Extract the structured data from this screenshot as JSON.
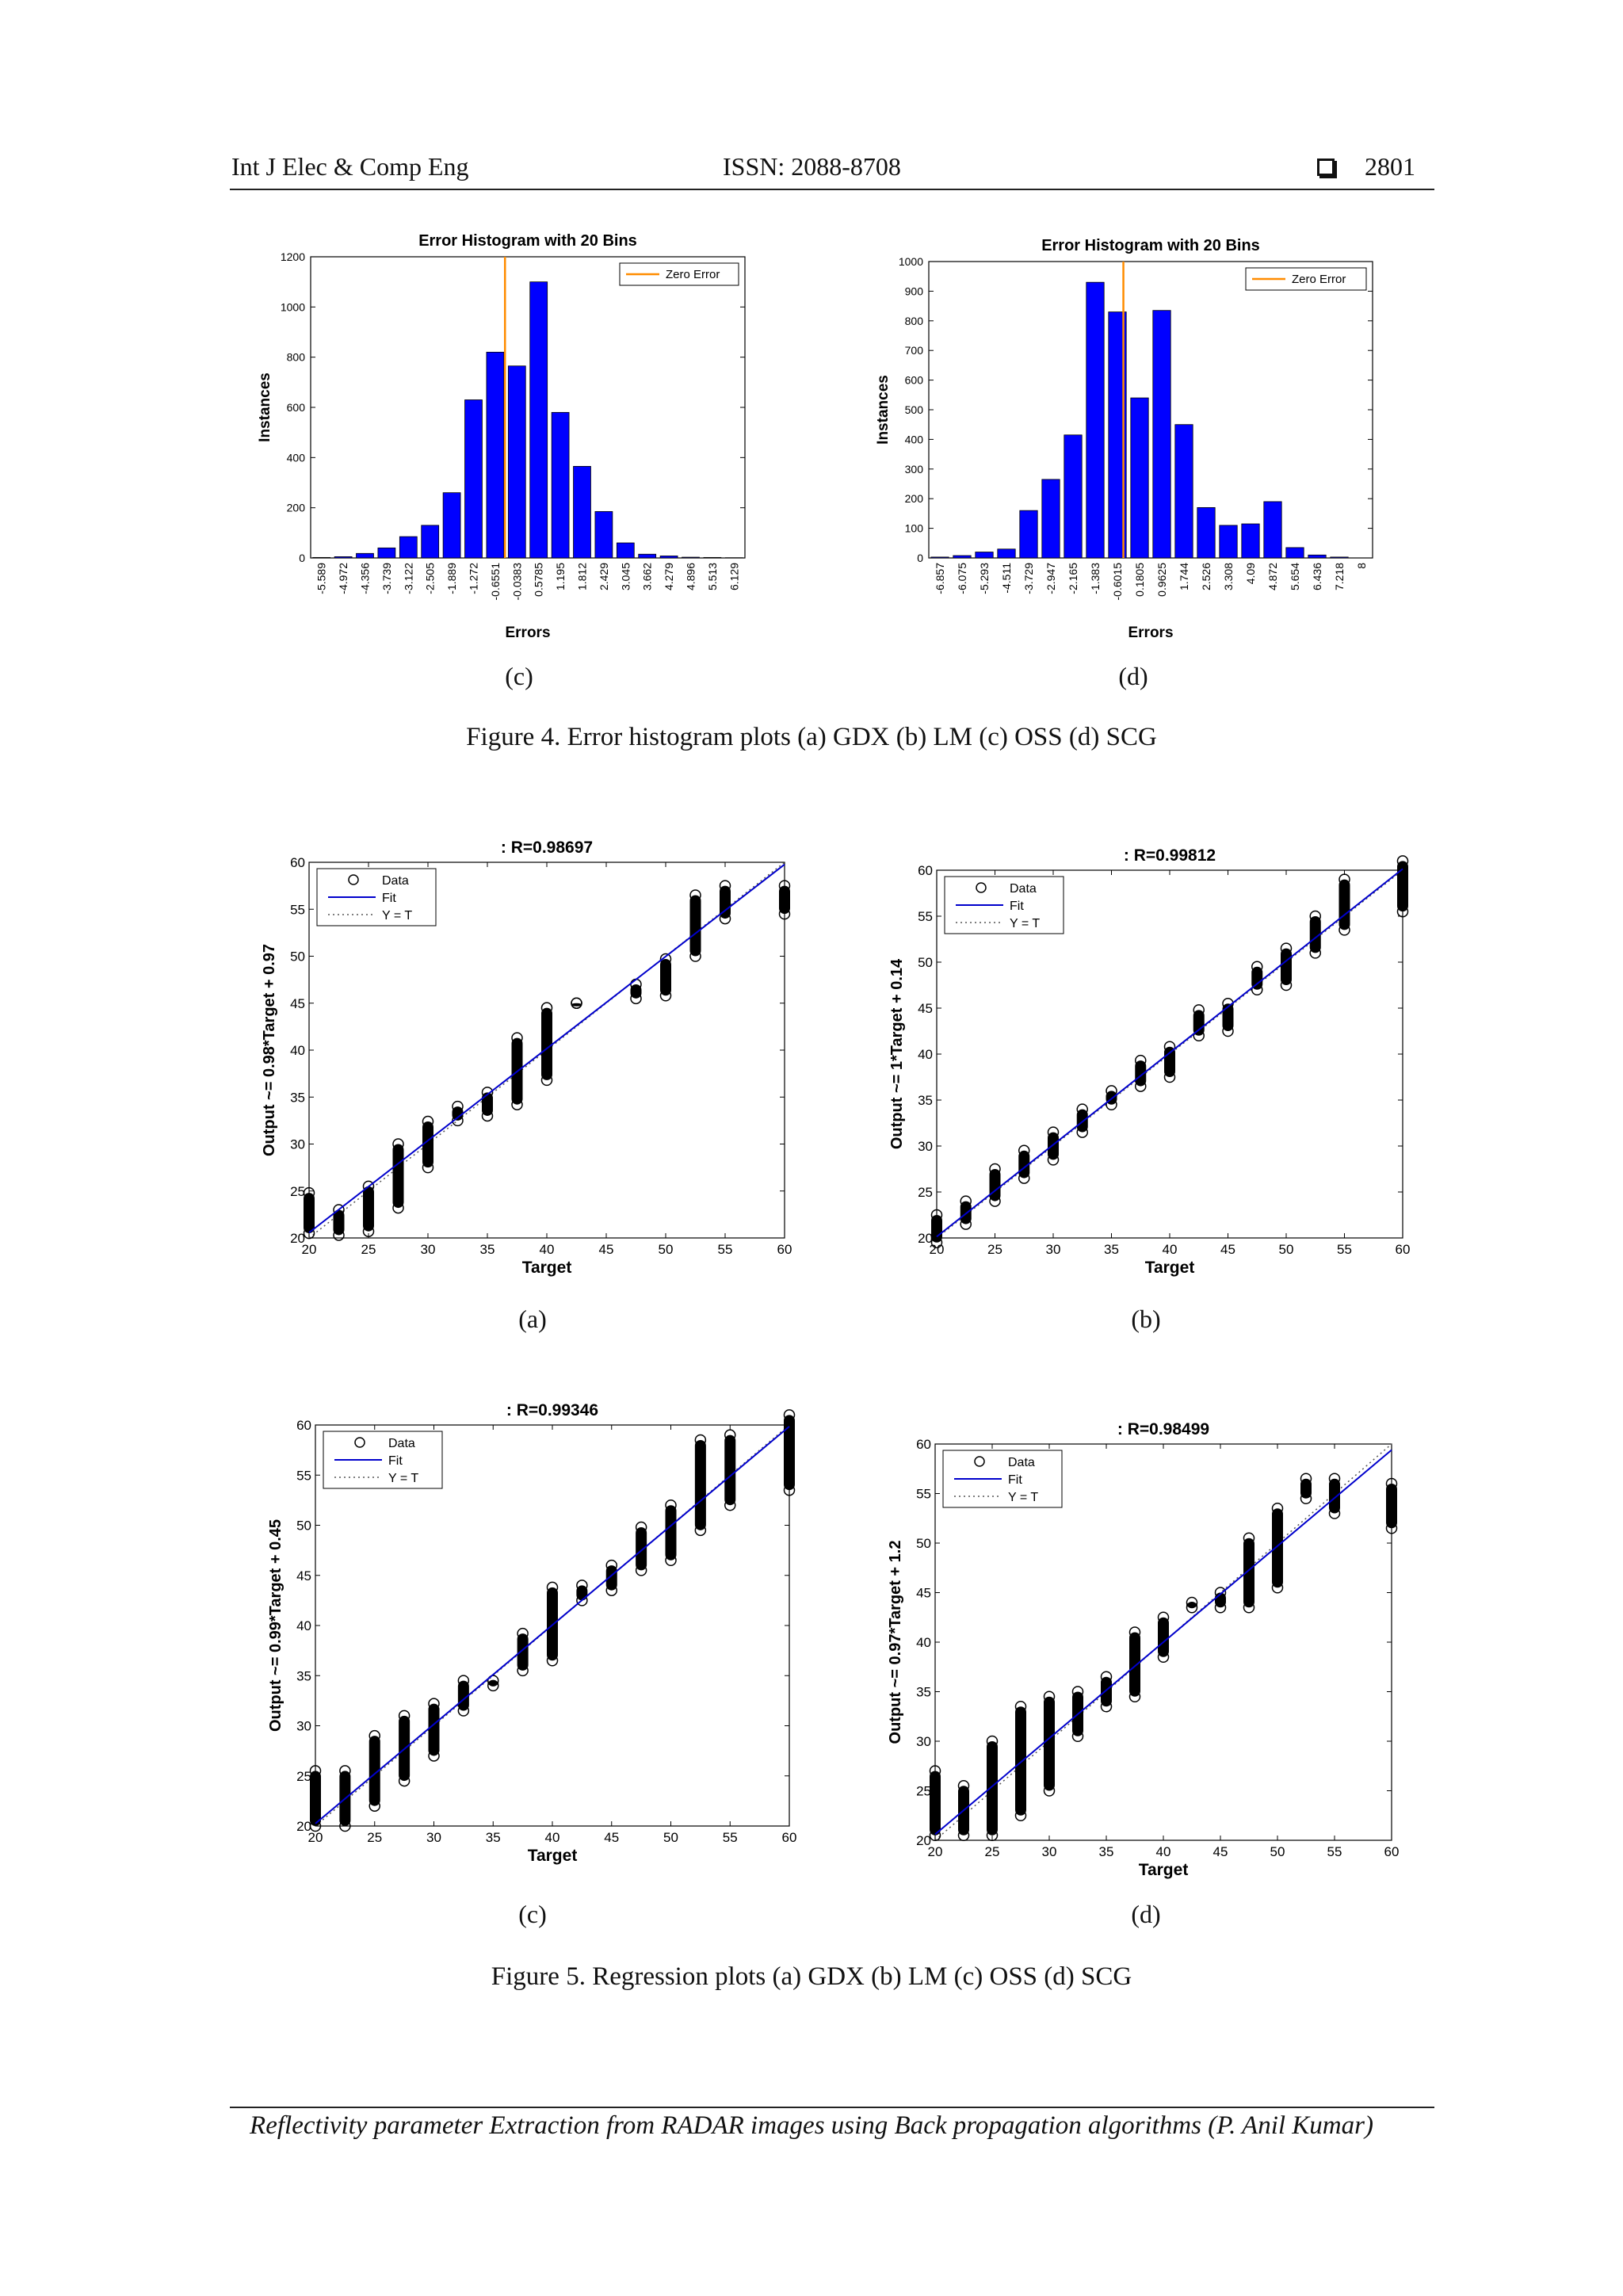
{
  "header": {
    "journal": "Int J Elec & Comp Eng",
    "issn": "ISSN: 2088-8708",
    "page": "2801"
  },
  "figure4": {
    "caption": "Figure 4. Error histogram plots (a) GDX (b) LM (c) OSS (d) SCG",
    "labels": [
      "(c)",
      "(d)"
    ]
  },
  "figure5": {
    "caption": "Figure 5. Regression plots (a) GDX (b) LM (c) OSS (d) SCG",
    "labels": [
      "(a)",
      "(b)",
      "(c)",
      "(d)"
    ]
  },
  "footer": "Reflectivity parameter Extraction from RADAR images using Back propagation algorithms (P. Anil Kumar)",
  "colors": {
    "bar": "#0000ff",
    "zero_line": "#ff8c00",
    "fit": "#0000cc",
    "data": "#000000"
  },
  "chart_data": [
    {
      "type": "bar",
      "id": "hist-c",
      "title": "Error Histogram with 20 Bins",
      "xlabel": "Errors",
      "ylabel": "Instances",
      "categories": [
        "-5.589",
        "-4.972",
        "-4.356",
        "-3.739",
        "-3.122",
        "-2.505",
        "-1.889",
        "-1.272",
        "-0.6551",
        "-0.0383",
        "0.5785",
        "1.195",
        "1.812",
        "2.429",
        "3.045",
        "3.662",
        "4.279",
        "4.896",
        "5.513",
        "6.129"
      ],
      "values": [
        2,
        5,
        18,
        40,
        85,
        130,
        260,
        630,
        820,
        765,
        1100,
        580,
        365,
        185,
        60,
        15,
        8,
        3,
        2,
        1
      ],
      "ylim": [
        0,
        1200
      ],
      "yticks": [
        0,
        200,
        400,
        600,
        800,
        1000,
        1200
      ],
      "zero_error_x": 8.95,
      "legend": "Zero Error",
      "legend_position": "top-right"
    },
    {
      "type": "bar",
      "id": "hist-d",
      "title": "Error Histogram with 20 Bins",
      "xlabel": "Errors",
      "ylabel": "Instances",
      "categories": [
        "-6.857",
        "-6.075",
        "-5.293",
        "-4.511",
        "-3.729",
        "-2.947",
        "-2.165",
        "-1.383",
        "-0.6015",
        "0.1805",
        "0.9625",
        "1.744",
        "2.526",
        "3.308",
        "4.09",
        "4.872",
        "5.654",
        "6.436",
        "7.218",
        "8"
      ],
      "values": [
        3,
        8,
        20,
        30,
        160,
        265,
        415,
        930,
        830,
        540,
        835,
        450,
        170,
        110,
        115,
        190,
        35,
        10,
        3,
        0
      ],
      "ylim": [
        0,
        1000
      ],
      "yticks": [
        0,
        100,
        200,
        300,
        400,
        500,
        600,
        700,
        800,
        900,
        1000
      ],
      "zero_error_x": 8.77,
      "legend": "Zero Error",
      "legend_position": "top-right"
    },
    {
      "type": "scatter",
      "id": "reg-a",
      "title": ": R=0.98697",
      "xlabel": "Target",
      "ylabel": "Output ~= 0.98*Target + 0.97",
      "xlim": [
        20,
        60
      ],
      "ylim": [
        20,
        60
      ],
      "xticks": [
        20,
        25,
        30,
        35,
        40,
        45,
        50,
        55,
        60
      ],
      "yticks": [
        20,
        25,
        30,
        35,
        40,
        45,
        50,
        55,
        60
      ],
      "fit": {
        "slope": 0.98,
        "intercept": 0.97
      },
      "legend": [
        "Data",
        "Fit",
        "Y = T"
      ],
      "legend_position": "top-left",
      "points": [
        [
          20,
          20.5
        ],
        [
          20,
          24.8
        ],
        [
          22.5,
          20.3
        ],
        [
          22.5,
          23.0
        ],
        [
          25,
          20.7
        ],
        [
          25,
          25.5
        ],
        [
          27.5,
          23.2
        ],
        [
          27.5,
          30.0
        ],
        [
          30,
          27.5
        ],
        [
          30,
          32.4
        ],
        [
          32.5,
          32.5
        ],
        [
          32.5,
          34.0
        ],
        [
          35,
          33.0
        ],
        [
          35,
          35.5
        ],
        [
          37.5,
          34.2
        ],
        [
          37.5,
          41.3
        ],
        [
          40,
          36.8
        ],
        [
          40,
          44.5
        ],
        [
          42.5,
          45.0
        ],
        [
          45,
          45.0
        ],
        [
          47.5,
          45.5
        ],
        [
          47.5,
          47.0
        ],
        [
          50,
          45.8
        ],
        [
          50,
          49.7
        ],
        [
          52.5,
          50.0
        ],
        [
          52.5,
          56.5
        ],
        [
          55,
          54.0
        ],
        [
          55,
          57.5
        ],
        [
          60,
          54.5
        ],
        [
          60,
          57.5
        ]
      ]
    },
    {
      "type": "scatter",
      "id": "reg-b",
      "title": ": R=0.99812",
      "xlabel": "Target",
      "ylabel": "Output ~= 1*Target + 0.14",
      "xlim": [
        20,
        60
      ],
      "ylim": [
        20,
        60
      ],
      "xticks": [
        20,
        25,
        30,
        35,
        40,
        45,
        50,
        55,
        60
      ],
      "yticks": [
        20,
        25,
        30,
        35,
        40,
        45,
        50,
        55,
        60
      ],
      "fit": {
        "slope": 1.0,
        "intercept": 0.14
      },
      "legend": [
        "Data",
        "Fit",
        "Y = T"
      ],
      "legend_position": "top-left",
      "points": [
        [
          20,
          19.5
        ],
        [
          20,
          22.5
        ],
        [
          22.5,
          21.5
        ],
        [
          22.5,
          24.0
        ],
        [
          25,
          24.0
        ],
        [
          25,
          27.5
        ],
        [
          27.5,
          26.5
        ],
        [
          27.5,
          29.5
        ],
        [
          30,
          28.5
        ],
        [
          30,
          31.5
        ],
        [
          32.5,
          31.5
        ],
        [
          32.5,
          34.0
        ],
        [
          35,
          34.5
        ],
        [
          35,
          36.0
        ],
        [
          37.5,
          36.5
        ],
        [
          37.5,
          39.3
        ],
        [
          40,
          37.5
        ],
        [
          40,
          40.8
        ],
        [
          42.5,
          42.0
        ],
        [
          42.5,
          44.8
        ],
        [
          45,
          42.5
        ],
        [
          45,
          45.5
        ],
        [
          47.5,
          47.0
        ],
        [
          47.5,
          49.5
        ],
        [
          50,
          47.5
        ],
        [
          50,
          51.5
        ],
        [
          52.5,
          51.0
        ],
        [
          52.5,
          55.0
        ],
        [
          55,
          53.5
        ],
        [
          55,
          59.0
        ],
        [
          60,
          55.5
        ],
        [
          60,
          61.0
        ]
      ]
    },
    {
      "type": "scatter",
      "id": "reg-c",
      "title": ": R=0.99346",
      "xlabel": "Target",
      "ylabel": "Output ~= 0.99*Target + 0.45",
      "xlim": [
        20,
        60
      ],
      "ylim": [
        20,
        60
      ],
      "xticks": [
        20,
        25,
        30,
        35,
        40,
        45,
        50,
        55,
        60
      ],
      "yticks": [
        20,
        25,
        30,
        35,
        40,
        45,
        50,
        55,
        60
      ],
      "fit": {
        "slope": 0.99,
        "intercept": 0.45
      },
      "legend": [
        "Data",
        "Fit",
        "Y = T"
      ],
      "legend_position": "top-left",
      "points": [
        [
          20,
          20.0
        ],
        [
          20,
          25.5
        ],
        [
          22.5,
          20.0
        ],
        [
          22.5,
          25.5
        ],
        [
          25,
          22.0
        ],
        [
          25,
          29.0
        ],
        [
          27.5,
          24.5
        ],
        [
          27.5,
          31.0
        ],
        [
          30,
          27.0
        ],
        [
          30,
          32.2
        ],
        [
          32.5,
          31.5
        ],
        [
          32.5,
          34.5
        ],
        [
          35,
          34.0
        ],
        [
          35,
          34.5
        ],
        [
          37.5,
          35.5
        ],
        [
          37.5,
          39.2
        ],
        [
          40,
          36.5
        ],
        [
          40,
          43.8
        ],
        [
          42.5,
          42.5
        ],
        [
          42.5,
          44.0
        ],
        [
          45,
          43.5
        ],
        [
          45,
          46.0
        ],
        [
          47.5,
          45.5
        ],
        [
          47.5,
          49.8
        ],
        [
          50,
          46.5
        ],
        [
          50,
          52.0
        ],
        [
          52.5,
          49.5
        ],
        [
          52.5,
          58.5
        ],
        [
          55,
          52.0
        ],
        [
          55,
          59.0
        ],
        [
          60,
          53.5
        ],
        [
          60,
          61.0
        ]
      ]
    },
    {
      "type": "scatter",
      "id": "reg-d",
      "title": ": R=0.98499",
      "xlabel": "Target",
      "ylabel": "Output ~= 0.97*Target + 1.2",
      "xlim": [
        20,
        60
      ],
      "ylim": [
        20,
        60
      ],
      "xticks": [
        20,
        25,
        30,
        35,
        40,
        45,
        50,
        55,
        60
      ],
      "yticks": [
        20,
        25,
        30,
        35,
        40,
        45,
        50,
        55,
        60
      ],
      "fit": {
        "slope": 0.97,
        "intercept": 1.2
      },
      "legend": [
        "Data",
        "Fit",
        "Y = T"
      ],
      "legend_position": "top-left",
      "points": [
        [
          20,
          20.5
        ],
        [
          20,
          27.0
        ],
        [
          22.5,
          20.5
        ],
        [
          22.5,
          25.5
        ],
        [
          25,
          20.5
        ],
        [
          25,
          30.0
        ],
        [
          27.5,
          22.5
        ],
        [
          27.5,
          33.5
        ],
        [
          30,
          25.0
        ],
        [
          30,
          34.5
        ],
        [
          32.5,
          30.5
        ],
        [
          32.5,
          35.0
        ],
        [
          35,
          33.5
        ],
        [
          35,
          36.5
        ],
        [
          37.5,
          34.5
        ],
        [
          37.5,
          41.0
        ],
        [
          40,
          38.5
        ],
        [
          40,
          42.5
        ],
        [
          42.5,
          43.5
        ],
        [
          42.5,
          44.0
        ],
        [
          45,
          43.5
        ],
        [
          45,
          45.0
        ],
        [
          47.5,
          43.5
        ],
        [
          47.5,
          50.5
        ],
        [
          50,
          45.5
        ],
        [
          50,
          53.5
        ],
        [
          52.5,
          54.5
        ],
        [
          52.5,
          56.5
        ],
        [
          55,
          53.0
        ],
        [
          55,
          56.5
        ],
        [
          60,
          51.5
        ],
        [
          60,
          56.0
        ]
      ]
    }
  ]
}
